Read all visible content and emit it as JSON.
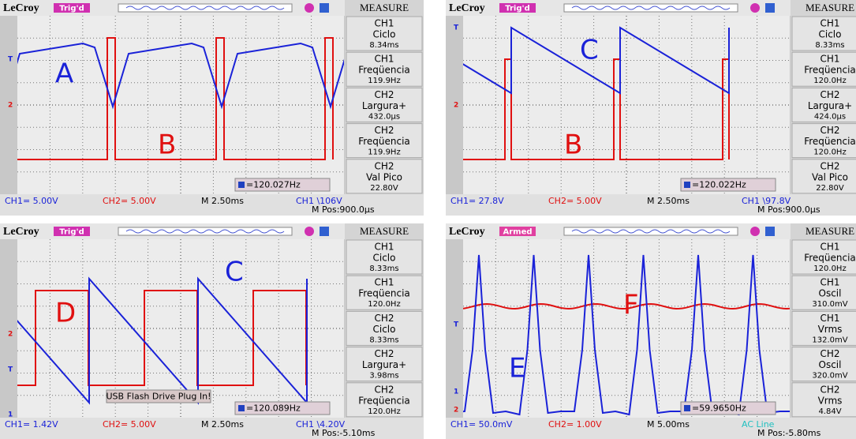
{
  "brand": "LeCroy",
  "sidebar_title": "MEASURE",
  "panels": [
    {
      "status": "Trig'd",
      "measure": [
        {
          "channel": "CH1",
          "name": "Ciclo",
          "value": "8.34ms"
        },
        {
          "channel": "CH1",
          "name": "Freqüencia",
          "value": "119.9Hz"
        },
        {
          "channel": "CH2",
          "name": "Largura+",
          "value": "432.0µs"
        },
        {
          "channel": "CH2",
          "name": "Freqüencia",
          "value": "119.9Hz"
        },
        {
          "channel": "CH2",
          "name": "Val Pico",
          "value": "22.80V"
        }
      ],
      "ch1": "CH1= 5.00V",
      "ch2": "CH2= 5.00V",
      "timebase": "M 2.50ms",
      "trigger": "CH1 \\106V",
      "mpos": "M Pos:900.0µs",
      "freq": "=120.027Hz",
      "markers": [
        "T",
        "2"
      ],
      "labels": [
        "A",
        "B"
      ]
    },
    {
      "status": "Trig'd",
      "measure": [
        {
          "channel": "CH1",
          "name": "Ciclo",
          "value": "8.33ms"
        },
        {
          "channel": "CH1",
          "name": "Freqüencia",
          "value": "120.0Hz"
        },
        {
          "channel": "CH2",
          "name": "Largura+",
          "value": "424.0µs"
        },
        {
          "channel": "CH2",
          "name": "Freqüencia",
          "value": "120.0Hz"
        },
        {
          "channel": "CH2",
          "name": "Val Pico",
          "value": "22.80V"
        }
      ],
      "ch1": "CH1= 27.8V",
      "ch2": "CH2= 5.00V",
      "timebase": "M 2.50ms",
      "trigger": "CH1 \\97.8V",
      "mpos": "M Pos:900.0µs",
      "freq": "=120.022Hz",
      "markers": [
        "T",
        "2"
      ],
      "labels": [
        "C",
        "B"
      ]
    },
    {
      "status": "Trig'd",
      "measure": [
        {
          "channel": "CH1",
          "name": "Ciclo",
          "value": "8.33ms"
        },
        {
          "channel": "CH1",
          "name": "Freqüencia",
          "value": "120.0Hz"
        },
        {
          "channel": "CH2",
          "name": "Ciclo",
          "value": "8.33ms"
        },
        {
          "channel": "CH2",
          "name": "Largura+",
          "value": "3.98ms"
        },
        {
          "channel": "CH2",
          "name": "Freqüencia",
          "value": "120.0Hz"
        }
      ],
      "ch1": "CH1= 1.42V",
      "ch2": "CH2= 5.00V",
      "timebase": "M 2.50ms",
      "trigger": "CH1 \\4.20V",
      "mpos": "M Pos:-5.10ms",
      "freq": "=120.089Hz",
      "markers": [
        "2",
        "T",
        "1"
      ],
      "labels": [
        "C",
        "D"
      ],
      "popup": "USB Flash Drive Plug In!"
    },
    {
      "status": "Armed",
      "measure": [
        {
          "channel": "CH1",
          "name": "Freqüencia",
          "value": "120.0Hz"
        },
        {
          "channel": "CH1",
          "name": "Oscil",
          "value": "310.0mV"
        },
        {
          "channel": "CH1",
          "name": "Vrms",
          "value": "132.0mV"
        },
        {
          "channel": "CH2",
          "name": "Oscil",
          "value": "320.0mV"
        },
        {
          "channel": "CH2",
          "name": "Vrms",
          "value": "4.84V"
        }
      ],
      "ch1": "CH1= 50.0mV",
      "ch2": "CH2= 1.00V",
      "timebase": "M 5.00ms",
      "trigger": "AC Line",
      "mpos": "M Pos:-5.80ms",
      "freq": "=59.9650Hz",
      "markers": [
        "T",
        "1",
        "2"
      ],
      "labels": [
        "F",
        "E"
      ]
    }
  ]
}
